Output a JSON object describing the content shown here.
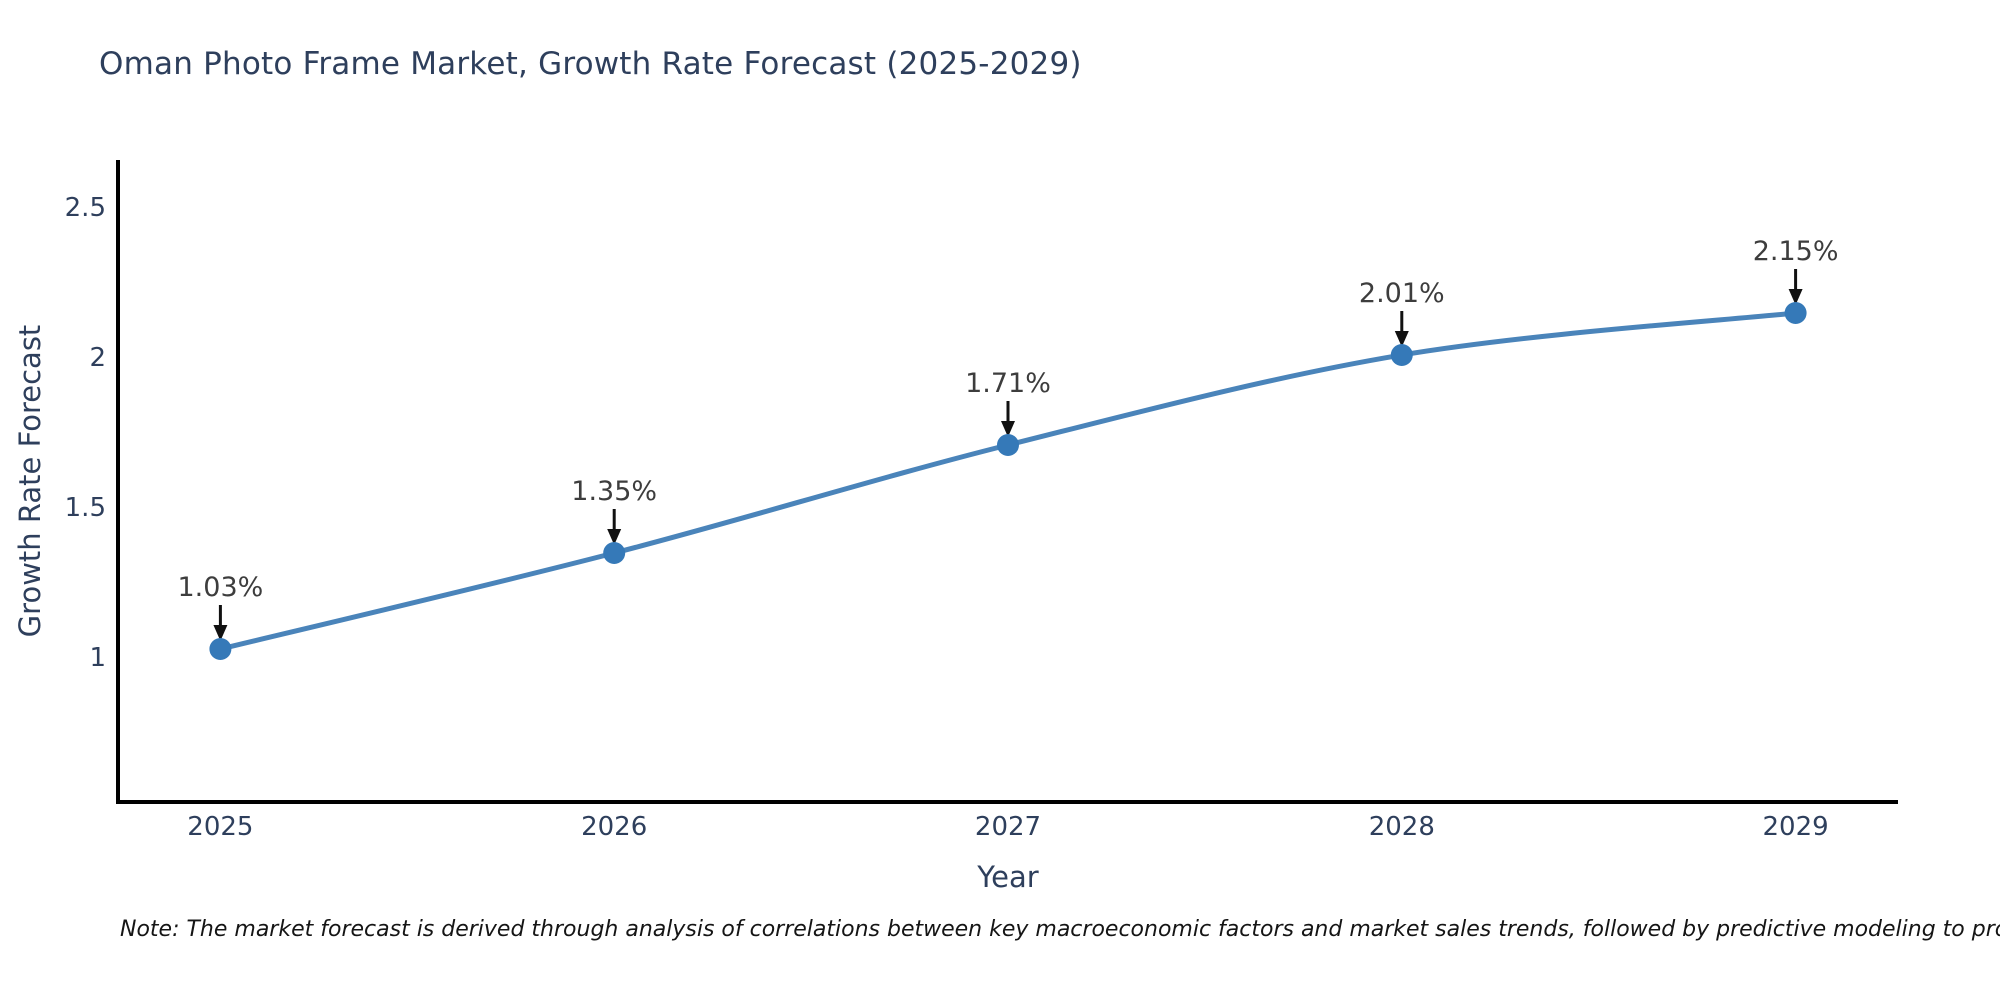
{
  "chart_data": {
    "type": "line",
    "title": "Oman Photo Frame Market, Growth Rate Forecast (2025-2029)",
    "xlabel": "Year",
    "ylabel": "Growth Rate Forecast",
    "x": [
      2025,
      2026,
      2027,
      2028,
      2029
    ],
    "values": [
      1.03,
      1.35,
      1.71,
      2.01,
      2.15
    ],
    "point_labels": [
      "1.03%",
      "1.35%",
      "1.71%",
      "2.01%",
      "2.15%"
    ],
    "x_tick_labels": [
      "2025",
      "2026",
      "2027",
      "2028",
      "2029"
    ],
    "x_tick_values": [
      2025,
      2026,
      2027,
      2028,
      2029
    ],
    "y_tick_labels": [
      "1",
      "1.5",
      "2",
      "2.5"
    ],
    "y_tick_values": [
      1,
      1.5,
      2,
      2.5
    ],
    "xlim": [
      2024.74,
      2029.26
    ],
    "ylim": [
      0.52,
      2.66
    ],
    "line_shape": "spline",
    "grid": false,
    "legend": "none",
    "colors": {
      "line": "#4a84ba",
      "marker": "#3579b8",
      "axis": "#000000",
      "arrow": "#111111",
      "heading_text": "#2e3f5c",
      "annotation_text": "#3d3d3d",
      "note_text": "#151515",
      "background": "#ffffff"
    }
  },
  "note": "Note: The market forecast is derived through analysis of correlations between key macroeconomic factors and market sales trends, followed by predictive modeling to project future sales"
}
